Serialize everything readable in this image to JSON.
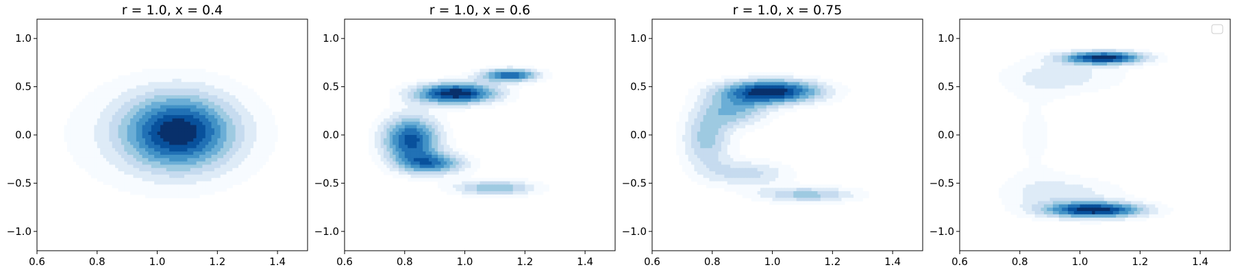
{
  "chart_data": [
    {
      "type": "contour",
      "title": "r = 1.0, x = 0.4",
      "xlim": [
        0.6,
        1.5
      ],
      "ylim": [
        -1.2,
        1.2
      ],
      "xticks": [
        0.6,
        0.8,
        1.0,
        1.2,
        1.4
      ],
      "xtick_labels": [
        "0.6",
        "0.8",
        "1.0",
        "1.2",
        "1.4"
      ],
      "yticks": [
        -1.0,
        -0.5,
        0.0,
        0.5,
        1.0
      ],
      "ytick_labels": [
        "−1.0",
        "−0.5",
        "0.0",
        "0.5",
        "1.0"
      ],
      "colormap": "Blues",
      "levels": 10,
      "legend": false,
      "density_components": [
        {
          "mx": 1.07,
          "my": 0.03,
          "sx": 0.13,
          "sy": 0.27,
          "w": 1.0
        },
        {
          "mx": 1.0,
          "my": 0.0,
          "sx": 0.32,
          "sy": 0.55,
          "w": 0.16
        }
      ]
    },
    {
      "type": "contour",
      "title": "r = 1.0, x = 0.6",
      "xlim": [
        0.6,
        1.5
      ],
      "ylim": [
        -1.2,
        1.2
      ],
      "xticks": [
        0.6,
        0.8,
        1.0,
        1.2,
        1.4
      ],
      "xtick_labels": [
        "0.6",
        "0.8",
        "1.0",
        "1.2",
        "1.4"
      ],
      "yticks": [
        -1.0,
        -0.5,
        0.0,
        0.5,
        1.0
      ],
      "ytick_labels": [
        "−1.0",
        "−0.5",
        "0.0",
        "0.5",
        "1.0"
      ],
      "colormap": "Blues",
      "levels": 10,
      "legend": false,
      "density_components": [
        {
          "mx": 0.82,
          "my": -0.05,
          "sx": 0.07,
          "sy": 0.18,
          "w": 0.85
        },
        {
          "mx": 0.97,
          "my": 0.43,
          "sx": 0.1,
          "sy": 0.08,
          "w": 1.0
        },
        {
          "mx": 1.15,
          "my": 0.62,
          "sx": 0.07,
          "sy": 0.05,
          "w": 0.8
        },
        {
          "mx": 0.9,
          "my": -0.3,
          "sx": 0.08,
          "sy": 0.08,
          "w": 0.6
        },
        {
          "mx": 1.1,
          "my": -0.55,
          "sx": 0.1,
          "sy": 0.06,
          "w": 0.5
        }
      ]
    },
    {
      "type": "contour",
      "title": "r = 1.0, x = 0.75",
      "xlim": [
        0.6,
        1.5
      ],
      "ylim": [
        -1.2,
        1.2
      ],
      "xticks": [
        0.6,
        0.8,
        1.0,
        1.2,
        1.4
      ],
      "xtick_labels": [
        "0.6",
        "0.8",
        "1.0",
        "1.2",
        "1.4"
      ],
      "yticks": [
        -1.0,
        -0.5,
        0.0,
        0.5,
        1.0
      ],
      "ytick_labels": [
        "−1.0",
        "−0.5",
        "0.0",
        "0.5",
        "1.0"
      ],
      "colormap": "Blues",
      "levels": 10,
      "legend": false,
      "density_components": [
        {
          "mx": 0.78,
          "my": -0.05,
          "sx": 0.06,
          "sy": 0.22,
          "w": 0.45
        },
        {
          "mx": 1.0,
          "my": 0.45,
          "sx": 0.12,
          "sy": 0.09,
          "w": 1.0
        },
        {
          "mx": 0.88,
          "my": 0.25,
          "sx": 0.08,
          "sy": 0.12,
          "w": 0.45
        },
        {
          "mx": 0.92,
          "my": -0.4,
          "sx": 0.1,
          "sy": 0.1,
          "w": 0.35
        },
        {
          "mx": 1.12,
          "my": -0.62,
          "sx": 0.12,
          "sy": 0.06,
          "w": 0.45
        }
      ]
    },
    {
      "type": "contour",
      "title": "",
      "xlim": [
        0.6,
        1.5
      ],
      "ylim": [
        -1.2,
        1.2
      ],
      "xticks": [
        0.6,
        0.8,
        1.0,
        1.2,
        1.4
      ],
      "xtick_labels": [
        "0.6",
        "0.8",
        "1.0",
        "1.2",
        "1.4"
      ],
      "yticks": [
        -1.0,
        -0.5,
        0.0,
        0.5,
        1.0
      ],
      "ytick_labels": [
        "−1.0",
        "−0.5",
        "0.0",
        "0.5",
        "1.0"
      ],
      "colormap": "Blues",
      "levels": 10,
      "legend": true,
      "legend_position": "top-right",
      "density_components": [
        {
          "mx": 1.08,
          "my": 0.8,
          "sx": 0.1,
          "sy": 0.05,
          "w": 1.0
        },
        {
          "mx": 1.05,
          "my": -0.78,
          "sx": 0.12,
          "sy": 0.06,
          "w": 1.0
        },
        {
          "mx": 0.85,
          "my": 0.0,
          "sx": 0.09,
          "sy": 0.5,
          "w": 0.12
        },
        {
          "mx": 0.95,
          "my": 0.6,
          "sx": 0.15,
          "sy": 0.12,
          "w": 0.25
        },
        {
          "mx": 0.95,
          "my": -0.6,
          "sx": 0.15,
          "sy": 0.12,
          "w": 0.25
        }
      ]
    }
  ]
}
